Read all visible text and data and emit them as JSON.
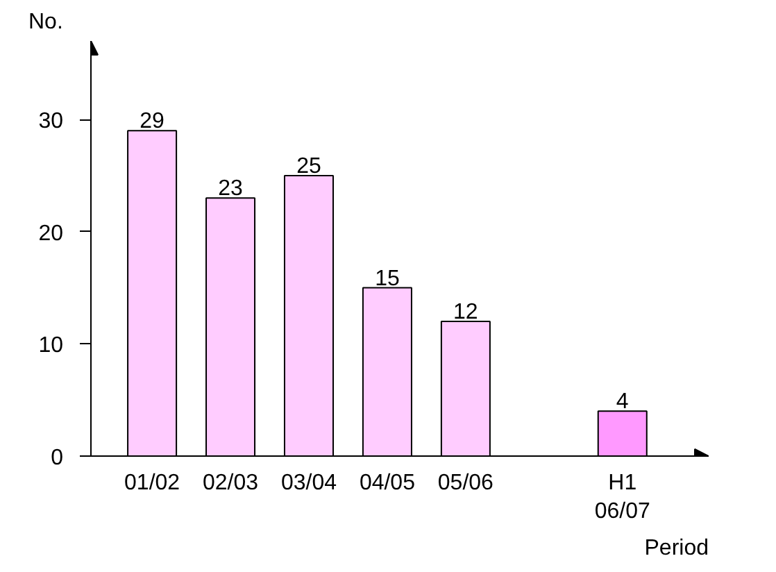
{
  "chart_data": {
    "type": "bar",
    "xlabel": "Period",
    "ylabel": "No.",
    "categories": [
      "01/02",
      "02/03",
      "03/04",
      "04/05",
      "05/06",
      null,
      "H1\n06/07"
    ],
    "values": [
      29,
      23,
      25,
      15,
      12,
      null,
      4
    ],
    "colors": [
      "#ffccff",
      "#ffccff",
      "#ffccff",
      "#ffccff",
      "#ffccff",
      "#ffffff",
      "#ff99ff"
    ],
    "data_labels": true,
    "ylim": [
      0,
      37
    ],
    "yticks": [
      0,
      10,
      20,
      30
    ],
    "grid": false
  }
}
